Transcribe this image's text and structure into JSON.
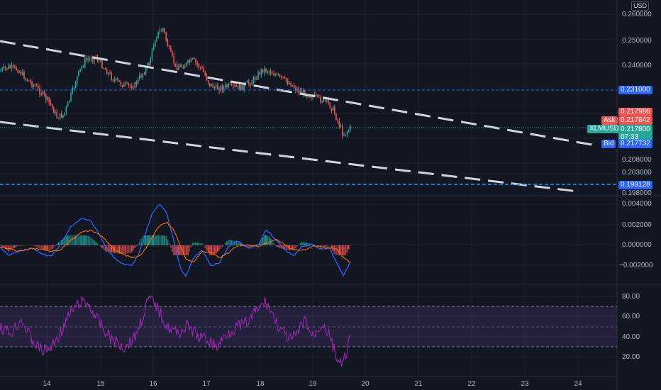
{
  "price_panel": {
    "currency": "USD",
    "ticks": [
      "0.260000",
      "0.250000",
      "0.240000",
      "0.208000",
      "0.203000"
    ],
    "partial_tick": "0.198000",
    "levels": [
      {
        "label": "0.231000",
        "bg": "#2962ff",
        "color": "#ffffff"
      },
      {
        "label": "0.199128",
        "bg": "#2962ff",
        "color": "#ffffff"
      }
    ],
    "current_tags": {
      "price_label": "0.217986",
      "price_bg": "#ef5350",
      "ask_label": "Ask",
      "ask_value": "0.217842",
      "ask_bg": "#ef5350",
      "symbol": "XLMUSD",
      "last_value": "0.217800",
      "countdown": "07:33",
      "last_bg": "#26a69a",
      "bid_label": "Bid",
      "bid_value": "0.217732",
      "bid_bg": "#2962ff"
    }
  },
  "macd_panel": {
    "ticks": [
      "0.004000",
      "0.002000",
      "0.000000",
      "−0.002000"
    ]
  },
  "rsi_panel": {
    "ticks": [
      "80.00",
      "60.00",
      "40.00",
      "20.00"
    ],
    "band_color": "#7e57c2",
    "line_color": "#9c27b0"
  },
  "time_axis": {
    "labels": [
      "14",
      "15",
      "16",
      "17",
      "18",
      "19",
      "20",
      "21",
      "22",
      "23",
      "24"
    ]
  },
  "colors": {
    "up": "#26a69a",
    "down": "#ef5350",
    "trendline": "#d1d4dc",
    "macd": "#2962ff",
    "signal": "#ff6d00"
  }
}
